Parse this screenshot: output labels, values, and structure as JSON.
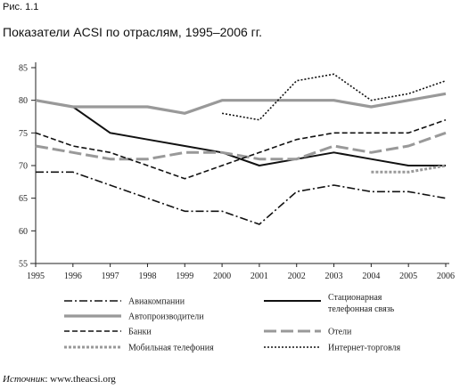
{
  "figure_label": "Рис. 1.1",
  "source": {
    "label": "Источник",
    "text": "www.theacsi.org"
  },
  "chart_data": {
    "type": "line",
    "title": "Показатели ACSI по отраслям, 1995–2006 гг.",
    "xlabel": "",
    "ylabel": "",
    "x": [
      1995,
      1996,
      1997,
      1998,
      1999,
      2000,
      2001,
      2002,
      2003,
      2004,
      2005,
      2006
    ],
    "ylim": [
      55,
      85
    ],
    "yticks": [
      55,
      60,
      65,
      70,
      75,
      80,
      85
    ],
    "grid": false,
    "legend_position": "bottom",
    "series": [
      {
        "name": "Авиакомпании",
        "style": "dashdot-black",
        "values": [
          69,
          69,
          67,
          65,
          63,
          63,
          61,
          66,
          67,
          66,
          66,
          65
        ]
      },
      {
        "name": "Стационарная телефонная связь",
        "style": "solid-black",
        "values": [
          80,
          79,
          75,
          74,
          73,
          72,
          70,
          71,
          72,
          71,
          70,
          70
        ]
      },
      {
        "name": "Автопроизводители",
        "style": "solid-gray",
        "values": [
          80,
          79,
          79,
          79,
          78,
          80,
          80,
          80,
          80,
          79,
          80,
          81
        ]
      },
      {
        "name": "Отели",
        "style": "longdash-gray",
        "values": [
          73,
          72,
          71,
          71,
          72,
          72,
          71,
          71,
          73,
          72,
          73,
          75
        ]
      },
      {
        "name": "Банки",
        "style": "dash-black",
        "values": [
          75,
          73,
          72,
          70,
          68,
          70,
          72,
          74,
          75,
          75,
          75,
          77
        ]
      },
      {
        "name": "Мобильная телефония",
        "style": "dotted-gray",
        "values": [
          null,
          null,
          null,
          null,
          null,
          null,
          null,
          null,
          null,
          69,
          69,
          70
        ]
      },
      {
        "name": "Интернет-торговля",
        "style": "dotted-black",
        "values": [
          null,
          null,
          null,
          null,
          null,
          78,
          77,
          83,
          84,
          80,
          81,
          83
        ]
      }
    ]
  }
}
